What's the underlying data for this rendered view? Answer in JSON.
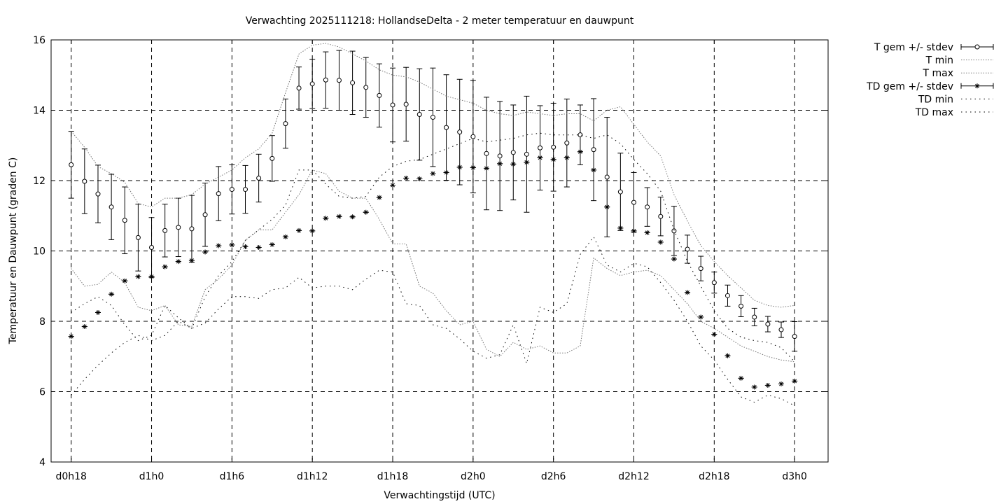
{
  "chart_data": {
    "type": "line",
    "title": "Verwachting 2025111218: HollandseDelta - 2 meter temperatuur en dauwpunt",
    "xlabel": "Verwachtingstijd (UTC)",
    "ylabel": "Temperatuur en Dauwpunt (graden C)",
    "ylim": [
      4,
      16
    ],
    "yticks": [
      4,
      6,
      8,
      10,
      12,
      14,
      16
    ],
    "xlim": [
      -1.5,
      56.5
    ],
    "xticks": [
      {
        "x": 0,
        "label": "d0h18"
      },
      {
        "x": 6,
        "label": "d1h0"
      },
      {
        "x": 12,
        "label": "d1h6"
      },
      {
        "x": 18,
        "label": "d1h12"
      },
      {
        "x": 24,
        "label": "d1h18"
      },
      {
        "x": 30,
        "label": "d2h0"
      },
      {
        "x": 36,
        "label": "d2h6"
      },
      {
        "x": 42,
        "label": "d2h12"
      },
      {
        "x": 48,
        "label": "d2h18"
      },
      {
        "x": 54,
        "label": "d3h0"
      }
    ],
    "grid": true,
    "legend_position": "outside-top-right",
    "x": [
      0,
      1,
      2,
      3,
      4,
      5,
      6,
      7,
      8,
      9,
      10,
      11,
      12,
      13,
      14,
      15,
      16,
      17,
      18,
      19,
      20,
      21,
      22,
      23,
      24,
      25,
      26,
      27,
      28,
      29,
      30,
      31,
      32,
      33,
      34,
      35,
      36,
      37,
      38,
      39,
      40,
      41,
      42,
      43,
      44,
      45,
      46,
      47,
      48,
      49,
      50,
      51,
      52,
      53,
      54
    ],
    "series": [
      {
        "name": "T gem +/- stdev",
        "style": "errorbar-circle",
        "values": [
          12.45,
          11.98,
          11.62,
          11.25,
          10.87,
          10.38,
          10.1,
          10.58,
          10.67,
          10.63,
          11.03,
          11.63,
          11.75,
          11.75,
          12.07,
          12.63,
          13.62,
          14.63,
          14.75,
          14.86,
          14.85,
          14.78,
          14.65,
          14.42,
          14.15,
          14.17,
          13.88,
          13.8,
          13.51,
          13.38,
          13.25,
          12.77,
          12.7,
          12.8,
          12.75,
          12.93,
          12.95,
          13.07,
          13.3,
          12.88,
          12.1,
          11.68,
          11.38,
          11.25,
          10.98,
          10.57,
          10.05,
          9.5,
          9.1,
          8.73,
          8.43,
          8.12,
          7.92,
          7.76,
          7.57
        ],
        "stdev": [
          0.95,
          0.92,
          0.82,
          0.93,
          0.95,
          0.95,
          0.85,
          0.75,
          0.83,
          0.95,
          0.9,
          0.77,
          0.7,
          0.68,
          0.68,
          0.65,
          0.7,
          0.6,
          0.7,
          0.8,
          0.85,
          0.9,
          0.85,
          0.9,
          1.05,
          1.05,
          1.3,
          1.4,
          1.5,
          1.5,
          1.6,
          1.6,
          1.55,
          1.35,
          1.65,
          1.2,
          1.25,
          1.25,
          0.85,
          1.45,
          1.7,
          1.1,
          0.85,
          0.55,
          0.55,
          0.7,
          0.4,
          0.35,
          0.3,
          0.3,
          0.3,
          0.25,
          0.22,
          0.22,
          0.42
        ]
      },
      {
        "name": "T min",
        "style": "dotted",
        "values": [
          9.5,
          9.0,
          9.05,
          9.4,
          9.1,
          8.4,
          8.3,
          8.45,
          7.9,
          7.85,
          8.9,
          9.2,
          9.6,
          10.3,
          10.6,
          10.6,
          11.1,
          11.6,
          12.3,
          12.2,
          11.7,
          11.5,
          11.5,
          10.9,
          10.2,
          10.2,
          9.0,
          8.8,
          8.3,
          7.9,
          8.0,
          7.2,
          7.0,
          7.4,
          7.2,
          7.3,
          7.1,
          7.1,
          7.3,
          9.8,
          9.5,
          9.3,
          9.4,
          9.45,
          9.3,
          8.9,
          8.5,
          8.0,
          7.8,
          7.55,
          7.3,
          7.15,
          7.0,
          6.9,
          6.85
        ]
      },
      {
        "name": "T max",
        "style": "dotted",
        "values": [
          13.4,
          12.95,
          12.4,
          12.2,
          11.95,
          11.35,
          11.25,
          11.5,
          11.5,
          11.6,
          11.9,
          12.1,
          12.3,
          12.65,
          12.9,
          13.35,
          14.5,
          15.6,
          15.85,
          15.9,
          15.8,
          15.6,
          15.4,
          15.15,
          15.0,
          14.95,
          14.8,
          14.6,
          14.4,
          14.3,
          14.2,
          14.0,
          13.9,
          13.85,
          13.95,
          13.9,
          13.85,
          13.9,
          13.9,
          13.7,
          14.0,
          14.1,
          13.6,
          13.1,
          12.7,
          11.6,
          10.85,
          10.15,
          9.7,
          9.3,
          8.95,
          8.6,
          8.45,
          8.4,
          8.45
        ]
      },
      {
        "name": "TD gem +/- stdev",
        "style": "errorbar-star",
        "values": [
          7.57,
          7.85,
          8.25,
          8.77,
          9.15,
          9.27,
          9.27,
          9.55,
          9.7,
          9.73,
          9.97,
          10.15,
          10.17,
          10.12,
          10.1,
          10.18,
          10.4,
          10.58,
          10.57,
          10.93,
          10.98,
          10.97,
          11.1,
          11.52,
          11.87,
          12.07,
          12.05,
          12.2,
          12.23,
          12.38,
          12.37,
          12.35,
          12.48,
          12.47,
          12.52,
          12.65,
          12.6,
          12.65,
          12.82,
          12.3,
          11.25,
          10.65,
          10.57,
          10.52,
          10.25,
          9.77,
          8.82,
          8.12,
          7.63,
          7.02,
          6.38,
          6.13,
          6.18,
          6.22,
          6.3
        ]
      },
      {
        "name": "TD min",
        "style": "dotted",
        "values": [
          5.9,
          6.35,
          6.75,
          7.1,
          7.4,
          7.6,
          7.45,
          7.6,
          8.0,
          7.8,
          7.95,
          8.35,
          8.7,
          8.7,
          8.65,
          8.9,
          8.95,
          9.25,
          8.95,
          9.0,
          9.0,
          8.9,
          9.2,
          9.45,
          9.4,
          8.5,
          8.45,
          7.9,
          7.8,
          7.5,
          7.15,
          6.95,
          7.05,
          7.9,
          6.8,
          8.4,
          8.25,
          8.5,
          9.9,
          10.4,
          9.6,
          9.4,
          9.65,
          9.55,
          9.1,
          8.6,
          8.0,
          7.3,
          6.9,
          6.35,
          5.85,
          5.7,
          5.9,
          5.8,
          5.6
        ]
      },
      {
        "name": "TD max",
        "style": "dotted",
        "values": [
          8.25,
          8.5,
          8.7,
          8.45,
          7.9,
          7.45,
          7.6,
          8.45,
          8.1,
          7.8,
          8.7,
          9.3,
          9.7,
          10.3,
          10.6,
          10.9,
          11.3,
          12.3,
          12.3,
          11.9,
          11.55,
          11.5,
          11.55,
          12.1,
          12.4,
          12.55,
          12.6,
          12.75,
          12.9,
          13.05,
          13.2,
          13.1,
          13.15,
          13.2,
          13.3,
          13.35,
          13.3,
          13.3,
          13.3,
          13.2,
          13.3,
          13.05,
          12.6,
          12.2,
          11.7,
          10.6,
          9.7,
          9.0,
          8.3,
          7.8,
          7.55,
          7.45,
          7.4,
          7.25,
          6.85
        ]
      }
    ]
  }
}
